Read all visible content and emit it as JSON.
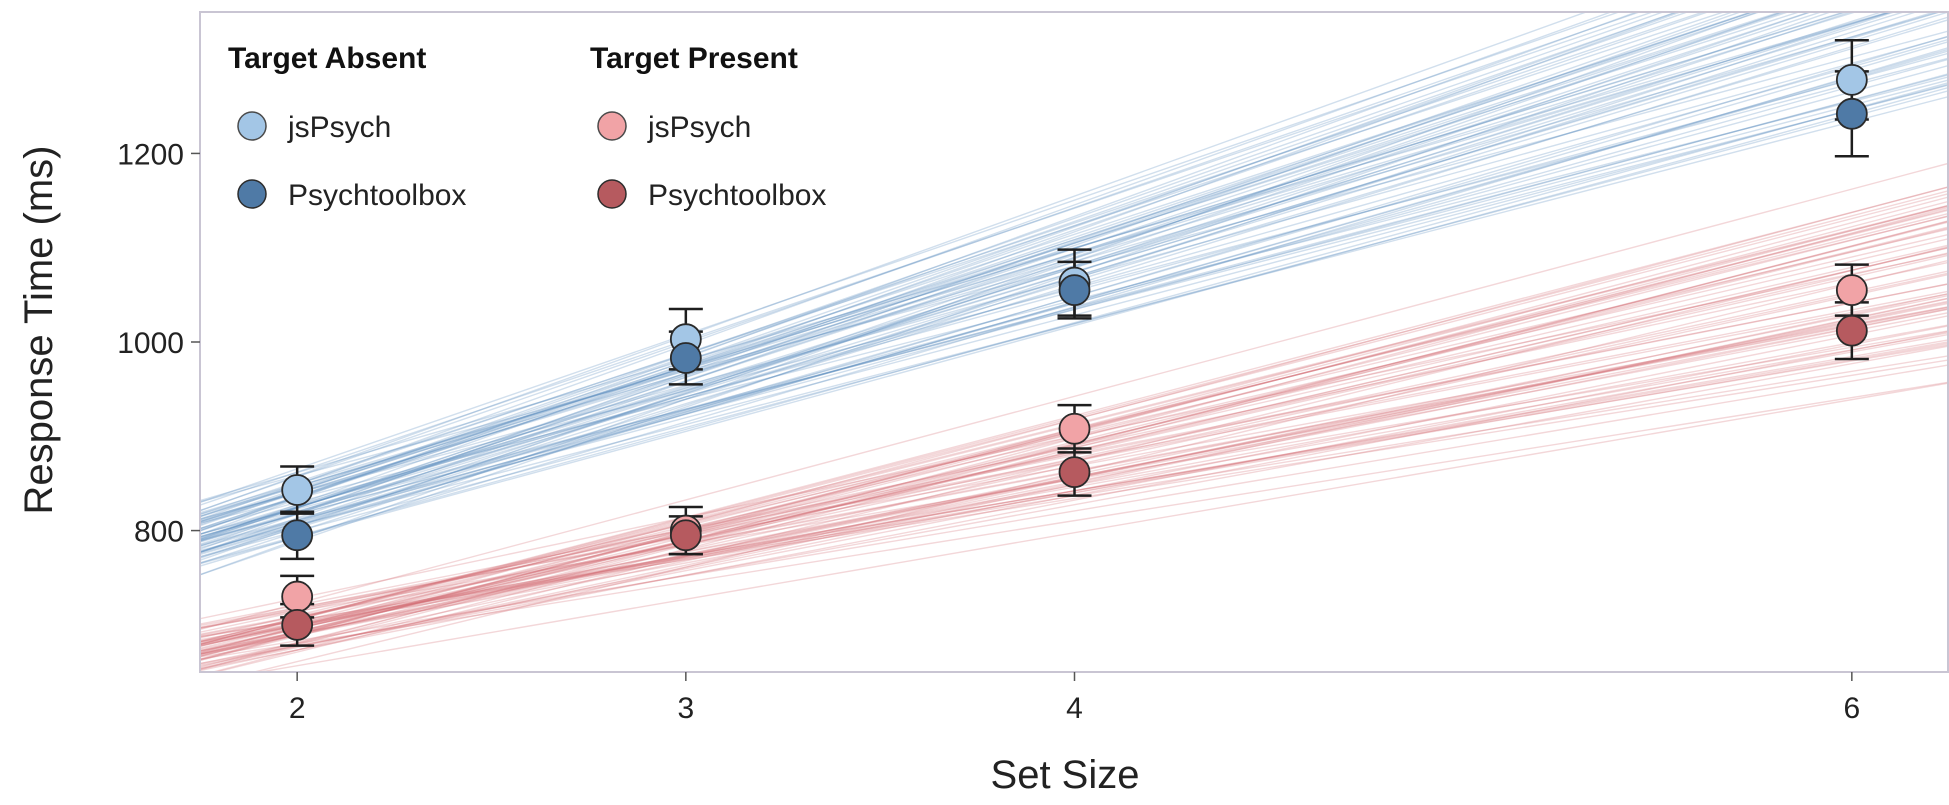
{
  "chart_data": {
    "type": "scatter",
    "title": "",
    "xlabel": "Set Size",
    "ylabel": "Response Time (ms)",
    "xlim": [
      1.75,
      6.25
    ],
    "ylim": [
      650,
      1350
    ],
    "x_ticks": [
      2,
      3,
      4,
      6
    ],
    "y_ticks": [
      800,
      1000,
      1200
    ],
    "legend_position": "top-left",
    "legend_groups": [
      {
        "title": "Target Absent",
        "entries": [
          {
            "label": "jsPsych",
            "color": "#a3c6e6"
          },
          {
            "label": "Psychtoolbox",
            "color": "#4f7aa6"
          }
        ]
      },
      {
        "title": "Target Present",
        "entries": [
          {
            "label": "jsPsych",
            "color": "#f1a3a6"
          },
          {
            "label": "Psychtoolbox",
            "color": "#b65a5f"
          }
        ]
      }
    ],
    "series": [
      {
        "condition": "Target Absent",
        "software": "jsPsych",
        "color": "#a3c6e6",
        "x": [
          2,
          3,
          4,
          6
        ],
        "y": [
          843,
          1003,
          1063,
          1278
        ],
        "error": [
          25,
          32,
          35,
          42
        ]
      },
      {
        "condition": "Target Absent",
        "software": "Psychtoolbox",
        "color": "#4f7aa6",
        "x": [
          2,
          3,
          4,
          6
        ],
        "y": [
          795,
          983,
          1055,
          1242
        ],
        "error": [
          25,
          28,
          30,
          45
        ]
      },
      {
        "condition": "Target Present",
        "software": "jsPsych",
        "color": "#f1a3a6",
        "x": [
          2,
          3,
          4,
          6
        ],
        "y": [
          730,
          800,
          908,
          1055
        ],
        "error": [
          22,
          25,
          25,
          27
        ]
      },
      {
        "condition": "Target Present",
        "software": "Psychtoolbox",
        "color": "#b65a5f",
        "x": [
          2,
          3,
          4,
          6
        ],
        "y": [
          700,
          795,
          862,
          1012
        ],
        "error": [
          22,
          20,
          25,
          30
        ]
      }
    ],
    "posterior_lines": {
      "count_per_condition": 70,
      "target_absent": {
        "color": "#5b8cbf",
        "intercept_at_2": [
          770,
          885
        ],
        "slope": [
          105,
          150
        ]
      },
      "target_present": {
        "color": "#d36f78",
        "intercept_at_2": [
          645,
          745
        ],
        "slope": [
          65,
          110
        ]
      }
    }
  }
}
